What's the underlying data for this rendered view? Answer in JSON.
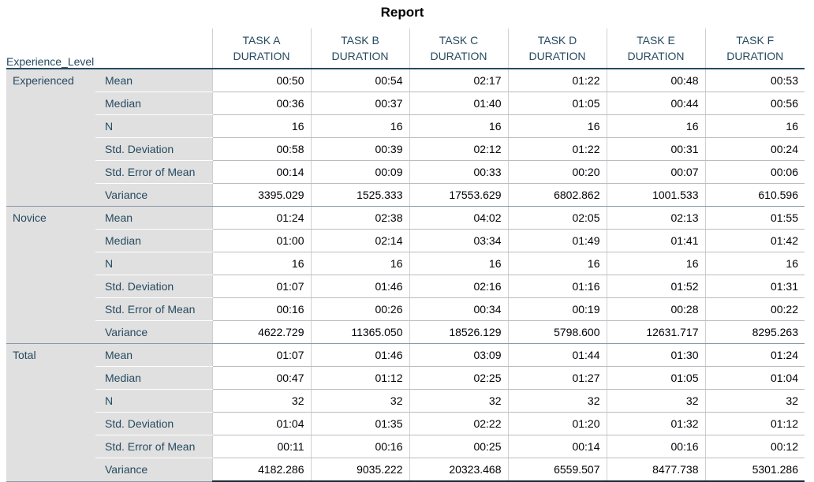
{
  "title": "Report",
  "corner_label": "Experience_Level",
  "columns": [
    [
      "TASK A",
      "DURATION"
    ],
    [
      "TASK B",
      "DURATION"
    ],
    [
      "TASK C",
      "DURATION"
    ],
    [
      "TASK D",
      "DURATION"
    ],
    [
      "TASK E",
      "DURATION"
    ],
    [
      "TASK F",
      "DURATION"
    ]
  ],
  "groups": [
    {
      "name": "Experienced",
      "rows": [
        {
          "stat": "Mean",
          "values": [
            "00:50",
            "00:54",
            "02:17",
            "01:22",
            "00:48",
            "00:53"
          ]
        },
        {
          "stat": "Median",
          "values": [
            "00:36",
            "00:37",
            "01:40",
            "01:05",
            "00:44",
            "00:56"
          ]
        },
        {
          "stat": "N",
          "values": [
            "16",
            "16",
            "16",
            "16",
            "16",
            "16"
          ]
        },
        {
          "stat": "Std. Deviation",
          "values": [
            "00:58",
            "00:39",
            "02:12",
            "01:22",
            "00:31",
            "00:24"
          ]
        },
        {
          "stat": "Std. Error of Mean",
          "values": [
            "00:14",
            "00:09",
            "00:33",
            "00:20",
            "00:07",
            "00:06"
          ]
        },
        {
          "stat": "Variance",
          "values": [
            "3395.029",
            "1525.333",
            "17553.629",
            "6802.862",
            "1001.533",
            "610.596"
          ]
        }
      ]
    },
    {
      "name": "Novice",
      "rows": [
        {
          "stat": "Mean",
          "values": [
            "01:24",
            "02:38",
            "04:02",
            "02:05",
            "02:13",
            "01:55"
          ]
        },
        {
          "stat": "Median",
          "values": [
            "01:00",
            "02:14",
            "03:34",
            "01:49",
            "01:41",
            "01:42"
          ]
        },
        {
          "stat": "N",
          "values": [
            "16",
            "16",
            "16",
            "16",
            "16",
            "16"
          ]
        },
        {
          "stat": "Std. Deviation",
          "values": [
            "01:07",
            "01:46",
            "02:16",
            "01:16",
            "01:52",
            "01:31"
          ]
        },
        {
          "stat": "Std. Error of Mean",
          "values": [
            "00:16",
            "00:26",
            "00:34",
            "00:19",
            "00:28",
            "00:22"
          ]
        },
        {
          "stat": "Variance",
          "values": [
            "4622.729",
            "11365.050",
            "18526.129",
            "5798.600",
            "12631.717",
            "8295.263"
          ]
        }
      ]
    },
    {
      "name": "Total",
      "rows": [
        {
          "stat": "Mean",
          "values": [
            "01:07",
            "01:46",
            "03:09",
            "01:44",
            "01:30",
            "01:24"
          ]
        },
        {
          "stat": "Median",
          "values": [
            "00:47",
            "01:12",
            "02:25",
            "01:27",
            "01:05",
            "01:04"
          ]
        },
        {
          "stat": "N",
          "values": [
            "32",
            "32",
            "32",
            "32",
            "32",
            "32"
          ]
        },
        {
          "stat": "Std. Deviation",
          "values": [
            "01:04",
            "01:35",
            "02:22",
            "01:20",
            "01:32",
            "01:12"
          ]
        },
        {
          "stat": "Std. Error of Mean",
          "values": [
            "00:11",
            "00:16",
            "00:25",
            "00:14",
            "00:16",
            "00:12"
          ]
        },
        {
          "stat": "Variance",
          "values": [
            "4182.286",
            "9035.222",
            "20323.468",
            "6559.507",
            "8477.738",
            "5301.286"
          ]
        }
      ]
    }
  ],
  "colors": {
    "header_text": "#264a60",
    "label_background": "#e0e0e0",
    "cell_text": "#010205"
  }
}
